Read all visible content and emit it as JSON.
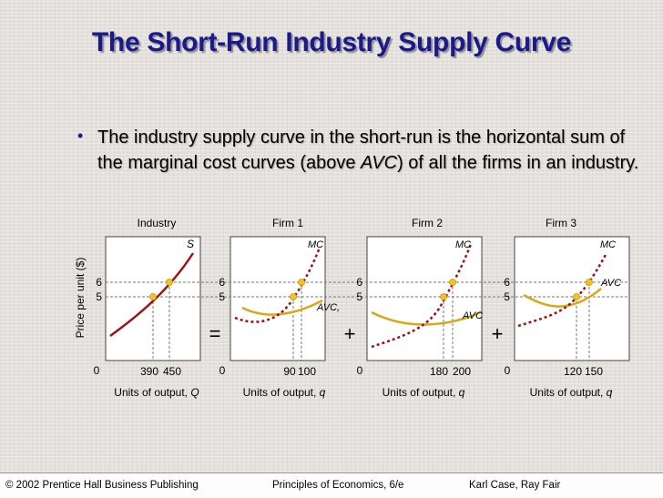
{
  "slide": {
    "title": "The Short-Run Industry Supply Curve",
    "bullet_part1": "The industry supply curve in the short-run is the horizontal sum of the marginal cost curves (above ",
    "bullet_italic": "AVC",
    "bullet_part2": ") of all the firms in an industry.",
    "operators": {
      "equals": "=",
      "plus1": "+",
      "plus2": "+"
    }
  },
  "colors": {
    "title": "#1a1a8c",
    "mc_curve": "#9b1414",
    "avc_curve": "#d9a818",
    "point": "#f6c21e",
    "guide": "#777777"
  },
  "chart_data": [
    {
      "type": "line",
      "title": "Industry",
      "ylabel": "Price per unit ($)",
      "xlabel_prefix": "Units of output, ",
      "xlabel_var": "Q",
      "y_ticks": [
        "6",
        "5"
      ],
      "x_ticks": [
        "390",
        "450"
      ],
      "origin_label": "0",
      "series": [
        {
          "name": "S",
          "points": [
            [
              390,
              5
            ],
            [
              450,
              6
            ]
          ]
        }
      ]
    },
    {
      "type": "line",
      "title": "Firm 1",
      "xlabel_prefix": "Units of output, ",
      "xlabel_var": "q",
      "y_ticks": [
        "6",
        "5"
      ],
      "x_ticks": [
        "90",
        "100"
      ],
      "origin_label": "0",
      "series": [
        {
          "name": "MC",
          "points": [
            [
              90,
              5
            ],
            [
              100,
              6
            ]
          ]
        },
        {
          "name": "AVC",
          "label": "AVC,"
        }
      ]
    },
    {
      "type": "line",
      "title": "Firm 2",
      "xlabel_prefix": "Units of output, ",
      "xlabel_var": "q",
      "y_ticks": [
        "6",
        "5"
      ],
      "x_ticks": [
        "180",
        "200"
      ],
      "origin_label": "0",
      "series": [
        {
          "name": "MC",
          "points": [
            [
              180,
              5
            ],
            [
              200,
              6
            ]
          ]
        },
        {
          "name": "AVC",
          "label": "AVC"
        }
      ]
    },
    {
      "type": "line",
      "title": "Firm 3",
      "xlabel_prefix": "Units of output, ",
      "xlabel_var": "q",
      "y_ticks": [
        "6",
        "5"
      ],
      "x_ticks": [
        "120",
        "150"
      ],
      "origin_label": "0",
      "series": [
        {
          "name": "MC",
          "points": [
            [
              120,
              5
            ],
            [
              150,
              6
            ]
          ]
        },
        {
          "name": "AVC",
          "label": "AVC"
        }
      ]
    }
  ],
  "footer": {
    "copyright": "© 2002 Prentice Hall Business Publishing",
    "book": "Principles of Economics, 6/e",
    "authors": "Karl Case, Ray Fair"
  }
}
